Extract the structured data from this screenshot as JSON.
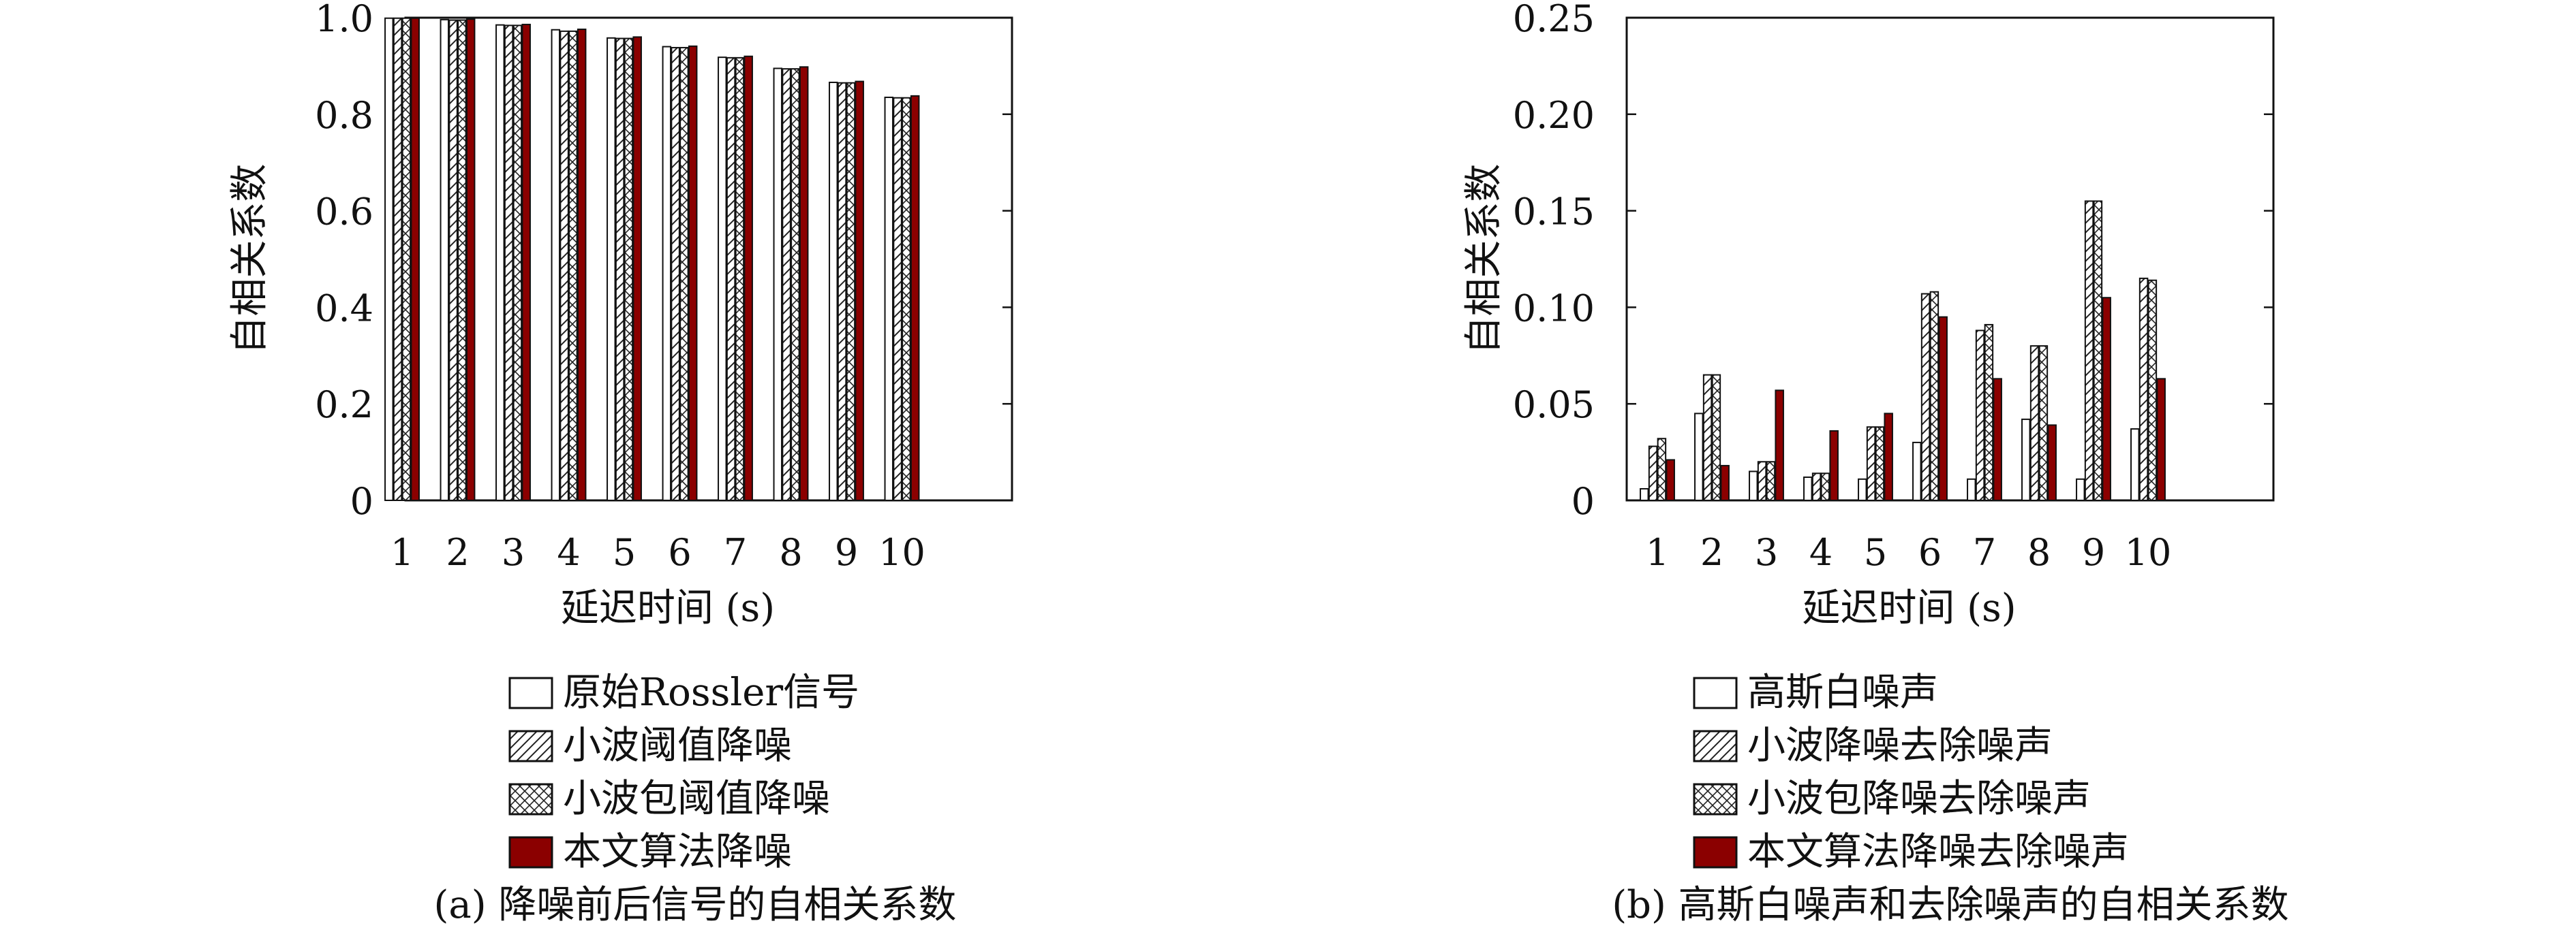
{
  "chart_data": [
    {
      "type": "bar",
      "categories": [
        "1",
        "2",
        "3",
        "4",
        "5",
        "6",
        "7",
        "8",
        "9",
        "10"
      ],
      "xlabel": "延迟时间 (s)",
      "ylabel": "自相关系数",
      "ylim": [
        0,
        1.0
      ],
      "yticks": [
        "0",
        "0.2",
        "0.4",
        "0.6",
        "0.8",
        "1.0"
      ],
      "caption": "(a) 降噪前后信号的自相关系数",
      "legend_position": "below",
      "series": [
        {
          "name": "原始Rossler信号",
          "pattern": "plain",
          "values": [
            0.999,
            0.996,
            0.985,
            0.975,
            0.958,
            0.94,
            0.918,
            0.895,
            0.866,
            0.835
          ]
        },
        {
          "name": "小波阈值降噪",
          "pattern": "hatch",
          "values": [
            0.999,
            0.995,
            0.984,
            0.972,
            0.957,
            0.938,
            0.917,
            0.894,
            0.865,
            0.834
          ]
        },
        {
          "name": "小波包阈值降噪",
          "pattern": "cross",
          "values": [
            0.999,
            0.995,
            0.984,
            0.972,
            0.957,
            0.938,
            0.917,
            0.894,
            0.865,
            0.834
          ]
        },
        {
          "name": "本文算法降噪",
          "pattern": "solid",
          "color": "#8b0000",
          "values": [
            0.999,
            0.997,
            0.986,
            0.976,
            0.96,
            0.941,
            0.92,
            0.898,
            0.868,
            0.838
          ]
        }
      ]
    },
    {
      "type": "bar",
      "categories": [
        "1",
        "2",
        "3",
        "4",
        "5",
        "6",
        "7",
        "8",
        "9",
        "10"
      ],
      "xlabel": "延迟时间 (s)",
      "ylabel": "自相关系数",
      "ylim": [
        0,
        0.25
      ],
      "yticks": [
        "0",
        "0.05",
        "0.10",
        "0.15",
        "0.20",
        "0.25"
      ],
      "caption": "(b) 高斯白噪声和去除噪声的自相关系数",
      "legend_position": "below",
      "series": [
        {
          "name": "高斯白噪声",
          "pattern": "plain",
          "values": [
            0.006,
            0.045,
            0.015,
            0.012,
            0.011,
            0.03,
            0.011,
            0.042,
            0.011,
            0.037
          ]
        },
        {
          "name": "小波降噪去除噪声",
          "pattern": "hatch",
          "values": [
            0.028,
            0.065,
            0.02,
            0.014,
            0.038,
            0.107,
            0.088,
            0.08,
            0.155,
            0.115
          ]
        },
        {
          "name": "小波包降噪去除噪声",
          "pattern": "cross",
          "values": [
            0.032,
            0.065,
            0.02,
            0.014,
            0.038,
            0.108,
            0.091,
            0.08,
            0.155,
            0.114
          ]
        },
        {
          "name": "本文算法降噪去除噪声",
          "pattern": "solid",
          "color": "#8b0000",
          "values": [
            0.021,
            0.018,
            0.057,
            0.036,
            0.045,
            0.095,
            0.063,
            0.039,
            0.105,
            0.063
          ]
        }
      ]
    }
  ]
}
